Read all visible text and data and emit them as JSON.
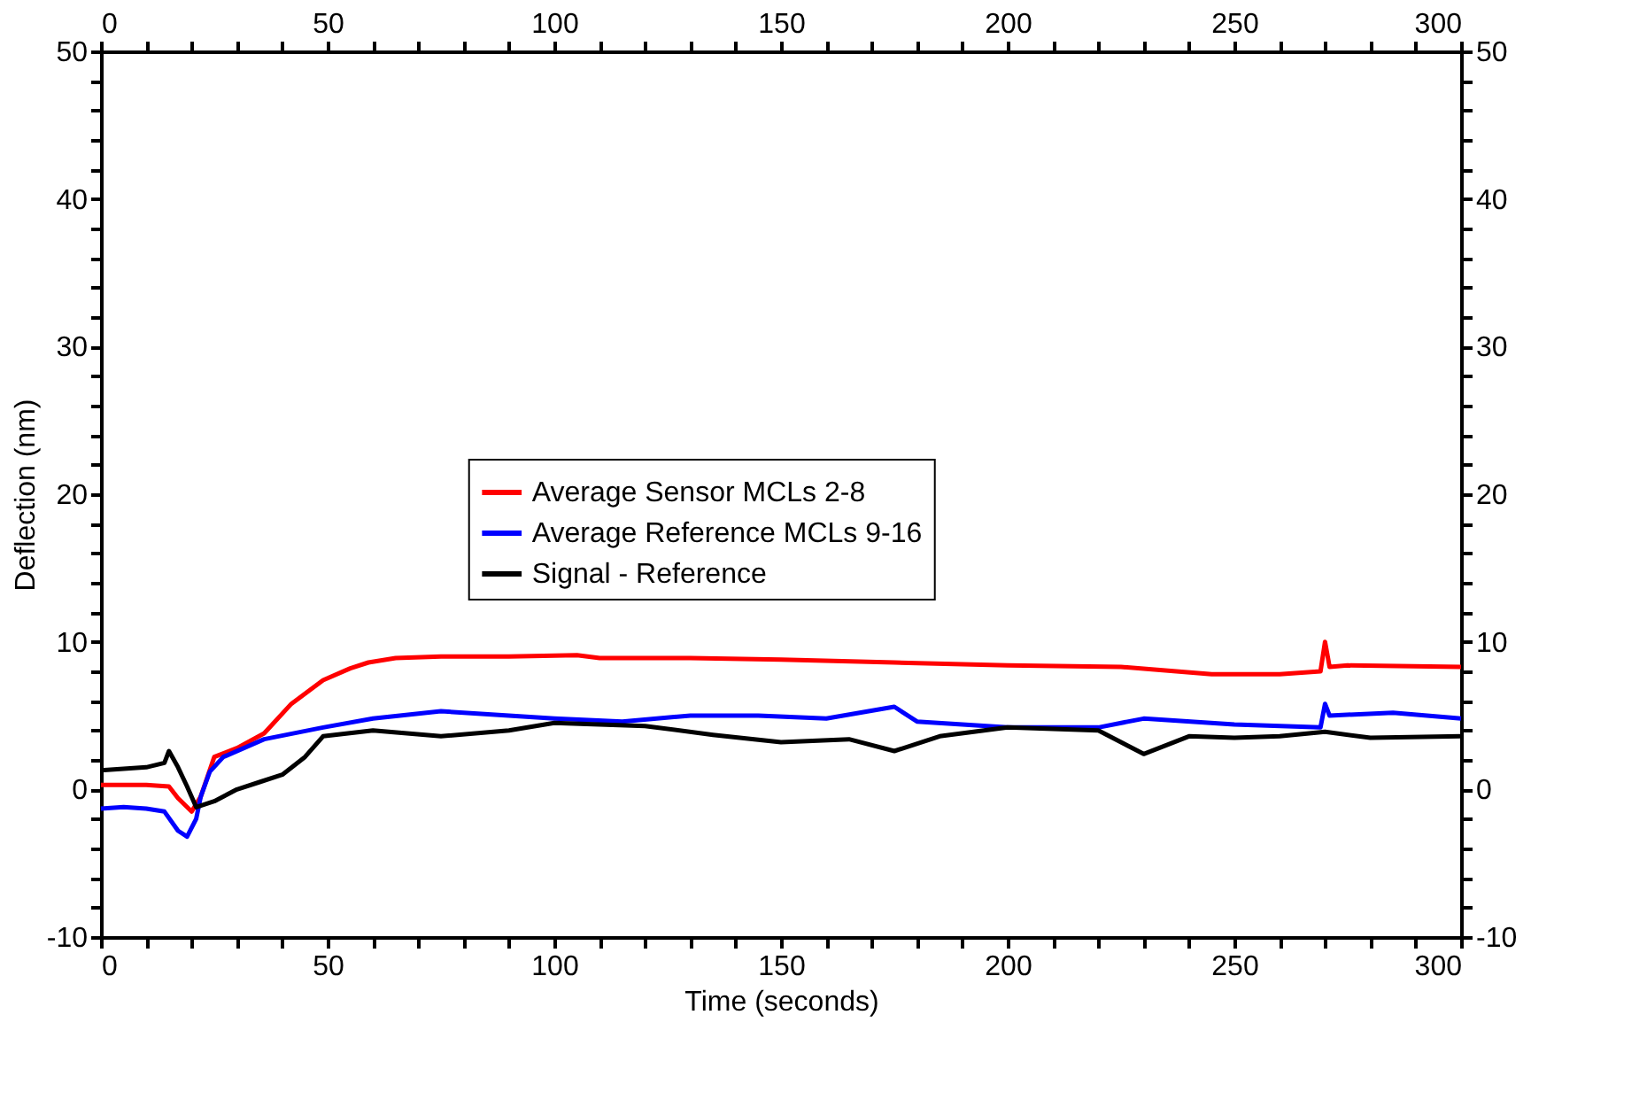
{
  "chart_data": {
    "type": "line",
    "xlabel": "Time (seconds)",
    "ylabel": "Deflection (nm)",
    "xlim": [
      0,
      300
    ],
    "ylim": [
      -10,
      50
    ],
    "x2lim": [
      0,
      300
    ],
    "y2lim": [
      -10,
      50
    ],
    "xticks": [
      0,
      50,
      100,
      150,
      200,
      250,
      300,
      {
        "value": 10,
        "label": null
      },
      {
        "value": 20,
        "label": null
      },
      {
        "value": 30,
        "label": null
      },
      {
        "value": 40,
        "label": null
      },
      {
        "value": 60,
        "label": null
      },
      {
        "value": 70,
        "label": null
      },
      {
        "value": 80,
        "label": null
      },
      {
        "value": 90,
        "label": null
      },
      {
        "value": 110,
        "label": null
      },
      {
        "value": 120,
        "label": null
      },
      {
        "value": 130,
        "label": null
      },
      {
        "value": 140,
        "label": null
      },
      {
        "value": 160,
        "label": null
      },
      {
        "value": 170,
        "label": null
      },
      {
        "value": 180,
        "label": null
      },
      {
        "value": 190,
        "label": null
      },
      {
        "value": 210,
        "label": null
      },
      {
        "value": 220,
        "label": null
      },
      {
        "value": 230,
        "label": null
      },
      {
        "value": 240,
        "label": null
      },
      {
        "value": 260,
        "label": null
      },
      {
        "value": 270,
        "label": null
      },
      {
        "value": 280,
        "label": null
      },
      {
        "value": 290,
        "label": null
      }
    ],
    "x2ticks": [
      0,
      50,
      100,
      150,
      200,
      250,
      300,
      {
        "value": 10,
        "label": null
      },
      {
        "value": 20,
        "label": null
      },
      {
        "value": 30,
        "label": null
      },
      {
        "value": 40,
        "label": null
      },
      {
        "value": 60,
        "label": null
      },
      {
        "value": 70,
        "label": null
      },
      {
        "value": 80,
        "label": null
      },
      {
        "value": 90,
        "label": null
      },
      {
        "value": 110,
        "label": null
      },
      {
        "value": 120,
        "label": null
      },
      {
        "value": 130,
        "label": null
      },
      {
        "value": 140,
        "label": null
      },
      {
        "value": 160,
        "label": null
      },
      {
        "value": 170,
        "label": null
      },
      {
        "value": 180,
        "label": null
      },
      {
        "value": 190,
        "label": null
      },
      {
        "value": 210,
        "label": null
      },
      {
        "value": 220,
        "label": null
      },
      {
        "value": 230,
        "label": null
      },
      {
        "value": 240,
        "label": null
      },
      {
        "value": 260,
        "label": null
      },
      {
        "value": 270,
        "label": null
      },
      {
        "value": 280,
        "label": null
      },
      {
        "value": 290,
        "label": null
      }
    ],
    "yticks": [
      -10,
      0,
      10,
      20,
      30,
      40,
      50,
      {
        "value": -8,
        "label": null
      },
      {
        "value": -6,
        "label": null
      },
      {
        "value": -4,
        "label": null
      },
      {
        "value": -2,
        "label": null
      },
      {
        "value": 2,
        "label": null
      },
      {
        "value": 4,
        "label": null
      },
      {
        "value": 6,
        "label": null
      },
      {
        "value": 8,
        "label": null
      },
      {
        "value": 12,
        "label": null
      },
      {
        "value": 14,
        "label": null
      },
      {
        "value": 16,
        "label": null
      },
      {
        "value": 18,
        "label": null
      },
      {
        "value": 22,
        "label": null
      },
      {
        "value": 24,
        "label": null
      },
      {
        "value": 26,
        "label": null
      },
      {
        "value": 28,
        "label": null
      },
      {
        "value": 32,
        "label": null
      },
      {
        "value": 34,
        "label": null
      },
      {
        "value": 36,
        "label": null
      },
      {
        "value": 38,
        "label": null
      },
      {
        "value": 42,
        "label": null
      },
      {
        "value": 44,
        "label": null
      },
      {
        "value": 46,
        "label": null
      },
      {
        "value": 48,
        "label": null
      }
    ],
    "y2ticks": [
      -10,
      0,
      10,
      20,
      30,
      40,
      50,
      {
        "value": -8,
        "label": null
      },
      {
        "value": -6,
        "label": null
      },
      {
        "value": -4,
        "label": null
      },
      {
        "value": -2,
        "label": null
      },
      {
        "value": 2,
        "label": null
      },
      {
        "value": 4,
        "label": null
      },
      {
        "value": 6,
        "label": null
      },
      {
        "value": 8,
        "label": null
      },
      {
        "value": 12,
        "label": null
      },
      {
        "value": 14,
        "label": null
      },
      {
        "value": 16,
        "label": null
      },
      {
        "value": 18,
        "label": null
      },
      {
        "value": 22,
        "label": null
      },
      {
        "value": 24,
        "label": null
      },
      {
        "value": 26,
        "label": null
      },
      {
        "value": 28,
        "label": null
      },
      {
        "value": 32,
        "label": null
      },
      {
        "value": 34,
        "label": null
      },
      {
        "value": 36,
        "label": null
      },
      {
        "value": 38,
        "label": null
      },
      {
        "value": 42,
        "label": null
      },
      {
        "value": 44,
        "label": null
      },
      {
        "value": 46,
        "label": null
      },
      {
        "value": 48,
        "label": null
      }
    ],
    "grid": false,
    "legend": "center",
    "marker": "none",
    "line_style": "solid",
    "series": [
      {
        "name": "Average Sensor MCLs 2-8",
        "color": "#ff0000",
        "x": [
          0,
          5,
          10,
          15,
          17,
          20,
          22,
          25,
          30,
          36,
          42,
          49,
          55,
          59,
          65,
          75,
          90,
          105,
          110,
          130,
          150,
          175,
          200,
          225,
          245,
          260,
          269,
          270,
          271,
          275,
          300
        ],
        "values": [
          0.3,
          0.3,
          0.3,
          0.2,
          -0.6,
          -1.5,
          -0.5,
          2.2,
          2.8,
          3.8,
          5.8,
          7.4,
          8.2,
          8.6,
          8.9,
          9.0,
          9.0,
          9.1,
          8.9,
          8.9,
          8.8,
          8.6,
          8.4,
          8.3,
          7.8,
          7.8,
          8.0,
          10.0,
          8.3,
          8.4,
          8.3
        ]
      },
      {
        "name": "Average Reference MCLs 9-16",
        "color": "#0000ff",
        "x": [
          0,
          5,
          10,
          14,
          17,
          19,
          21,
          22,
          24,
          27,
          36,
          49,
          60,
          75,
          90,
          100,
          115,
          130,
          145,
          160,
          175,
          180,
          200,
          220,
          230,
          250,
          269,
          270,
          271,
          285,
          300
        ],
        "values": [
          -1.3,
          -1.2,
          -1.3,
          -1.5,
          -2.8,
          -3.2,
          -2.0,
          -0.5,
          1.2,
          2.2,
          3.4,
          4.2,
          4.8,
          5.3,
          5.0,
          4.8,
          4.6,
          5.0,
          5.0,
          4.8,
          5.6,
          4.6,
          4.2,
          4.2,
          4.8,
          4.4,
          4.2,
          5.8,
          5.0,
          5.2,
          4.8
        ]
      },
      {
        "name": "Signal - Reference",
        "color": "#000000",
        "x": [
          0,
          5,
          10,
          14,
          15,
          17,
          19,
          21,
          25,
          30,
          35,
          40,
          45,
          49,
          60,
          75,
          90,
          100,
          120,
          135,
          150,
          165,
          175,
          185,
          200,
          220,
          230,
          240,
          250,
          260,
          270,
          280,
          300
        ],
        "values": [
          1.3,
          1.4,
          1.5,
          1.8,
          2.6,
          1.5,
          0.2,
          -1.2,
          -0.8,
          0.0,
          0.5,
          1.0,
          2.2,
          3.6,
          4.0,
          3.6,
          4.0,
          4.5,
          4.3,
          3.7,
          3.2,
          3.4,
          2.6,
          3.6,
          4.2,
          4.0,
          2.4,
          3.6,
          3.5,
          3.6,
          3.9,
          3.5,
          3.6
        ]
      }
    ]
  }
}
